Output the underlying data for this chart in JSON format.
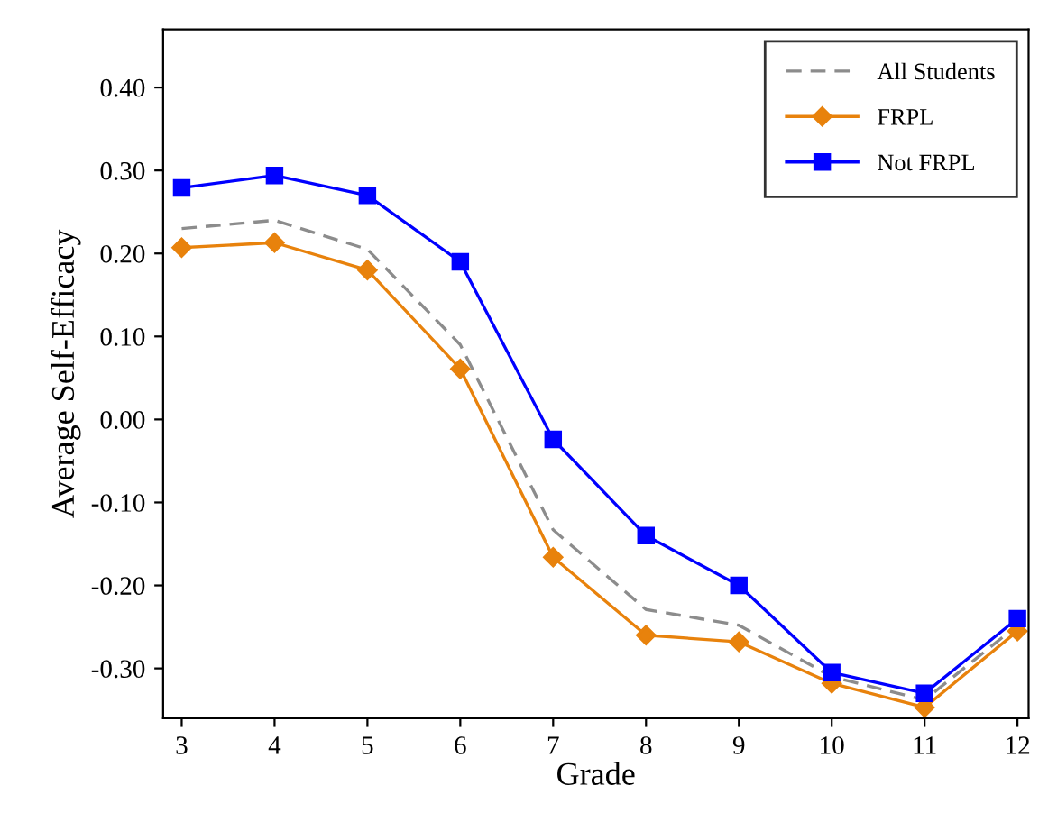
{
  "chart_data": {
    "type": "line",
    "xlabel": "Grade",
    "ylabel": "Average Self-Efficacy",
    "x": [
      3,
      4,
      5,
      6,
      7,
      8,
      9,
      10,
      11,
      12
    ],
    "series": [
      {
        "name": "All Students",
        "color": "#8c8c8c",
        "marker": "none",
        "line_style": "dashed",
        "values": [
          0.23,
          0.24,
          0.205,
          0.09,
          -0.133,
          -0.229,
          -0.248,
          -0.31,
          -0.338,
          -0.248
        ]
      },
      {
        "name": "FRPL",
        "color": "#e8820c",
        "marker": "diamond",
        "line_style": "solid",
        "values": [
          0.207,
          0.213,
          0.18,
          0.061,
          -0.166,
          -0.26,
          -0.268,
          -0.318,
          -0.347,
          -0.255
        ]
      },
      {
        "name": "Not FRPL",
        "color": "#0000ff",
        "marker": "square",
        "line_style": "solid",
        "values": [
          0.279,
          0.294,
          0.27,
          0.19,
          -0.024,
          -0.14,
          -0.2,
          -0.305,
          -0.33,
          -0.24
        ]
      }
    ],
    "xlim": [
      2.8,
      12.12
    ],
    "xticks": [
      3,
      4,
      5,
      6,
      7,
      8,
      9,
      10,
      11,
      12
    ],
    "ylim": [
      -0.36,
      0.47
    ],
    "yticks": [
      {
        "value": -0.3,
        "label": "-0.30"
      },
      {
        "value": -0.2,
        "label": "-0.20"
      },
      {
        "value": -0.1,
        "label": "-0.10"
      },
      {
        "value": 0,
        "label": "0.00"
      },
      {
        "value": 0.1,
        "label": "0.10"
      },
      {
        "value": 0.2,
        "label": "0.20"
      },
      {
        "value": 0.3,
        "label": "0.30"
      },
      {
        "value": 0.4,
        "label": "0.40"
      }
    ],
    "grid": false,
    "legend": "top right"
  }
}
